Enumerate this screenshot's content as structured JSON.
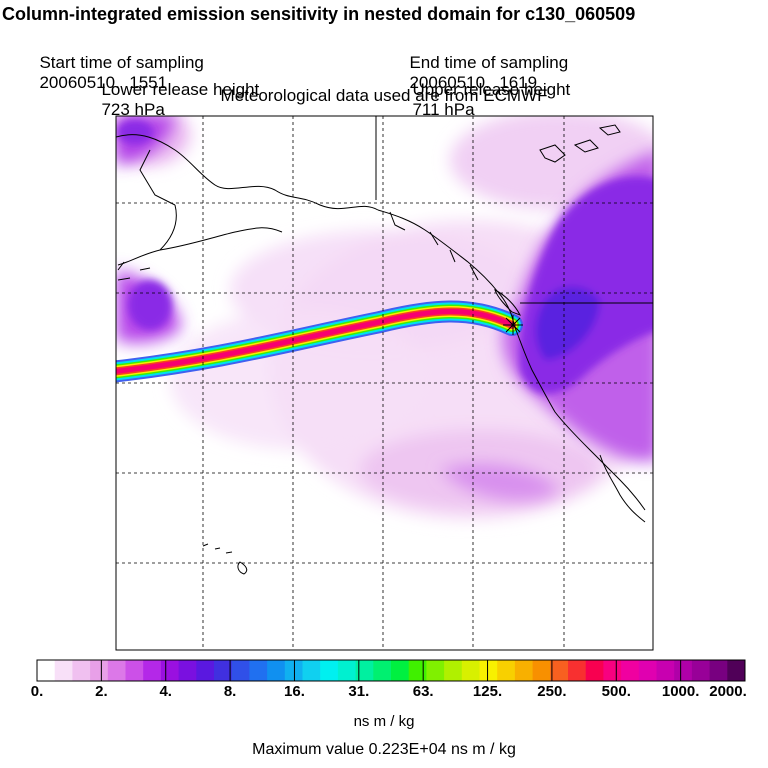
{
  "title": "Column-integrated emission sensitivity in nested domain for c130_060509",
  "sampling": {
    "start_label": "Start time of sampling",
    "start_value": "20060510.  1551",
    "end_label": "End time of sampling",
    "end_value": "20060510.  1619"
  },
  "release": {
    "lower_label": "Lower release height",
    "lower_value": "723 hPa",
    "upper_label": "Upper release height",
    "upper_value": "711 hPa"
  },
  "met_source": "Meteorological data used are from ECMWF",
  "colorbar": {
    "labels": [
      "0.",
      "2.",
      "4.",
      "8.",
      "16.",
      "31.",
      "63.",
      "125.",
      "250.",
      "500.",
      "1000.",
      "2000."
    ],
    "colors": [
      "#ffffff",
      "#f8e0f8",
      "#f0c0f0",
      "#e8a0e8",
      "#dc78e8",
      "#cc50e8",
      "#b428e8",
      "#9a10e0",
      "#7a10e0",
      "#5a18e0",
      "#4030e0",
      "#3050e8",
      "#2070f0",
      "#1090f0",
      "#10b0f0",
      "#10d0f0",
      "#00f0f0",
      "#00f0d0",
      "#00f0a0",
      "#00f070",
      "#00f040",
      "#40f000",
      "#80f000",
      "#b0f000",
      "#d8f000",
      "#f8f000",
      "#f8d000",
      "#f8b000",
      "#f89000",
      "#f86020",
      "#f83030",
      "#f80050",
      "#f80080",
      "#f000a0",
      "#e000b0",
      "#c800b0",
      "#b000a8",
      "#980098",
      "#780080",
      "#500058"
    ],
    "units": "ns m / kg"
  },
  "max_value": {
    "label": "Maximum value",
    "value": "0.223E+04 ns m / kg"
  },
  "map_colors": {
    "plume_core": "#f80060",
    "sensitivity_high": "#6a1ee0",
    "sensitivity_mid": "#b040e8",
    "sensitivity_low": "#f0c8f4",
    "coastline": "#000000"
  }
}
